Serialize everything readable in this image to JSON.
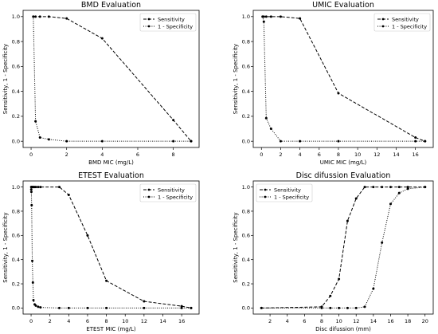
{
  "chart_data": [
    {
      "type": "line",
      "title": "BMD Evaluation",
      "xlabel": "BMD MIC (mg/L)",
      "ylabel": "Sensitivity, 1 - Specificity",
      "xlim": [
        -0.45,
        9.45
      ],
      "ylim": [
        -0.05,
        1.05
      ],
      "xticks": [
        0,
        2,
        4,
        6,
        8
      ],
      "yticks": [
        0.0,
        0.2,
        0.4,
        0.6,
        0.8,
        1.0
      ],
      "legend": "top-right",
      "series": [
        {
          "name": "Sensitivity",
          "style": "dashed",
          "x": [
            0.125,
            0.25,
            0.5,
            1,
            2,
            4,
            8,
            9
          ],
          "y": [
            1.0,
            1.0,
            1.0,
            1.0,
            0.985,
            0.825,
            0.17,
            0.0
          ]
        },
        {
          "name": "1 - Specificity",
          "style": "dotted",
          "x": [
            0.125,
            0.25,
            0.5,
            1,
            2,
            4,
            8,
            9
          ],
          "y": [
            1.0,
            0.16,
            0.03,
            0.015,
            0.0,
            0.0,
            0.0,
            0.0
          ]
        }
      ]
    },
    {
      "type": "line",
      "title": "UMIC Evaluation",
      "xlabel": "UMIC MIC (mg/L)",
      "ylabel": "Sensitivity, 1 - Specificity",
      "xlim": [
        -0.85,
        17.85
      ],
      "ylim": [
        -0.05,
        1.05
      ],
      "xticks": [
        0,
        2,
        4,
        6,
        8,
        10,
        12,
        14,
        16
      ],
      "yticks": [
        0.0,
        0.2,
        0.4,
        0.6,
        0.8,
        1.0
      ],
      "legend": "top-right",
      "series": [
        {
          "name": "Sensitivity",
          "style": "dashed",
          "x": [
            0.125,
            0.25,
            0.5,
            1,
            2,
            4,
            8,
            16,
            17
          ],
          "y": [
            1.0,
            1.0,
            1.0,
            1.0,
            1.0,
            0.985,
            0.385,
            0.03,
            0.0
          ]
        },
        {
          "name": "1 - Specificity",
          "style": "dotted",
          "x": [
            0.125,
            0.25,
            0.5,
            1,
            2,
            4,
            8,
            16,
            17
          ],
          "y": [
            1.0,
            0.96,
            0.185,
            0.1,
            0.0,
            0.0,
            0.0,
            0.0,
            0.0
          ]
        }
      ]
    },
    {
      "type": "line",
      "title": "ETEST Evaluation",
      "xlabel": "ETEST MIC (mg/L)",
      "ylabel": "Sensitivity, 1 - Specificity",
      "xlim": [
        -0.85,
        17.85
      ],
      "ylim": [
        -0.05,
        1.05
      ],
      "xticks": [
        0,
        2,
        4,
        6,
        8,
        10,
        12,
        14,
        16
      ],
      "yticks": [
        0.0,
        0.2,
        0.4,
        0.6,
        0.8,
        1.0
      ],
      "legend": "top-right",
      "series": [
        {
          "name": "Sensitivity",
          "style": "dashed",
          "x": [
            0.016,
            0.03,
            0.06,
            0.125,
            0.19,
            0.25,
            0.38,
            0.5,
            0.75,
            1,
            3,
            4,
            6,
            8,
            12,
            16,
            17
          ],
          "y": [
            1.0,
            1.0,
            1.0,
            1.0,
            1.0,
            1.0,
            1.0,
            1.0,
            1.0,
            1.0,
            1.0,
            0.935,
            0.6,
            0.225,
            0.055,
            0.015,
            0.0
          ]
        },
        {
          "name": "1 - Specificity",
          "style": "dotted",
          "x": [
            0.016,
            0.03,
            0.06,
            0.125,
            0.19,
            0.25,
            0.38,
            0.5,
            0.75,
            1,
            3,
            4,
            6,
            8,
            12,
            16,
            17
          ],
          "y": [
            0.98,
            0.96,
            0.85,
            0.39,
            0.21,
            0.065,
            0.03,
            0.02,
            0.01,
            0.005,
            0.0,
            0.0,
            0.0,
            0.0,
            0.0,
            0.0,
            0.0
          ]
        }
      ]
    },
    {
      "type": "line",
      "title": "Disc difussion Evaluation",
      "xlabel": "Disc difussion (mm)",
      "ylabel": "Sensitivity, 1 - Specificity",
      "xlim": [
        0.05,
        20.95
      ],
      "ylim": [
        -0.05,
        1.05
      ],
      "xticks": [
        2,
        4,
        6,
        8,
        10,
        12,
        14,
        16,
        18,
        20
      ],
      "yticks": [
        0.0,
        0.2,
        0.4,
        0.6,
        0.8,
        1.0
      ],
      "legend": "top-left",
      "series": [
        {
          "name": "Sensitivity",
          "style": "dashed",
          "x": [
            1,
            8,
            9,
            10,
            11,
            12,
            13,
            14,
            15,
            16,
            17,
            18,
            20
          ],
          "y": [
            0.0,
            0.01,
            0.1,
            0.24,
            0.72,
            0.905,
            1.0,
            1.0,
            1.0,
            1.0,
            1.0,
            1.0,
            1.0
          ]
        },
        {
          "name": "1 - Specificity",
          "style": "dotted",
          "x": [
            1,
            8,
            9,
            10,
            11,
            12,
            13,
            14,
            15,
            16,
            17,
            18,
            20
          ],
          "y": [
            0.0,
            0.0,
            0.0,
            0.0,
            0.0,
            0.0,
            0.01,
            0.16,
            0.54,
            0.86,
            0.95,
            0.985,
            1.0
          ]
        }
      ]
    }
  ]
}
